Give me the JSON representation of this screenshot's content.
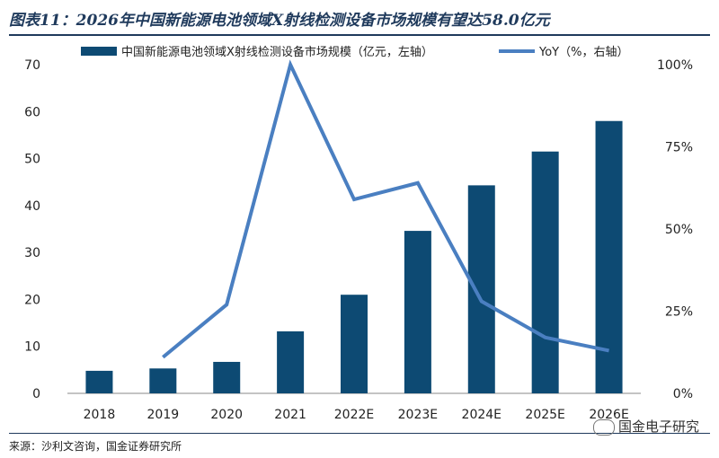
{
  "header": {
    "title": "图表11：2026年中国新能源电池领域X射线检测设备市场规模有望达58.0亿元"
  },
  "footer": {
    "source": "来源：沙利文咨询，国金证券研究所",
    "watermark": "国金电子研究"
  },
  "colors": {
    "bar": "#0d4a73",
    "line": "#4a7fc1",
    "axis": "#888888"
  },
  "chart_data": {
    "type": "bar",
    "categories": [
      "2018",
      "2019",
      "2020",
      "2021",
      "2022E",
      "2023E",
      "2024E",
      "2025E",
      "2026E"
    ],
    "series": [
      {
        "name": "中国新能源电池领域X射线检测设备市场规模（亿元，左轴）",
        "type": "bar",
        "axis": "left",
        "values": [
          4.8,
          5.3,
          6.7,
          13.2,
          21.0,
          34.6,
          44.3,
          51.5,
          58.0
        ]
      },
      {
        "name": "YoY（%，右轴）",
        "type": "line",
        "axis": "right",
        "values": [
          null,
          0.11,
          0.27,
          1.0,
          0.59,
          0.64,
          0.28,
          0.17,
          0.13
        ]
      }
    ],
    "left_axis": {
      "ylim": [
        0,
        70
      ],
      "ticks": [
        "0",
        "10",
        "20",
        "30",
        "40",
        "50",
        "60",
        "70"
      ]
    },
    "right_axis": {
      "ylim": [
        0,
        1
      ],
      "ticks": [
        "0%",
        "25%",
        "50%",
        "75%",
        "100%"
      ]
    },
    "legend": "top",
    "grid": false
  }
}
